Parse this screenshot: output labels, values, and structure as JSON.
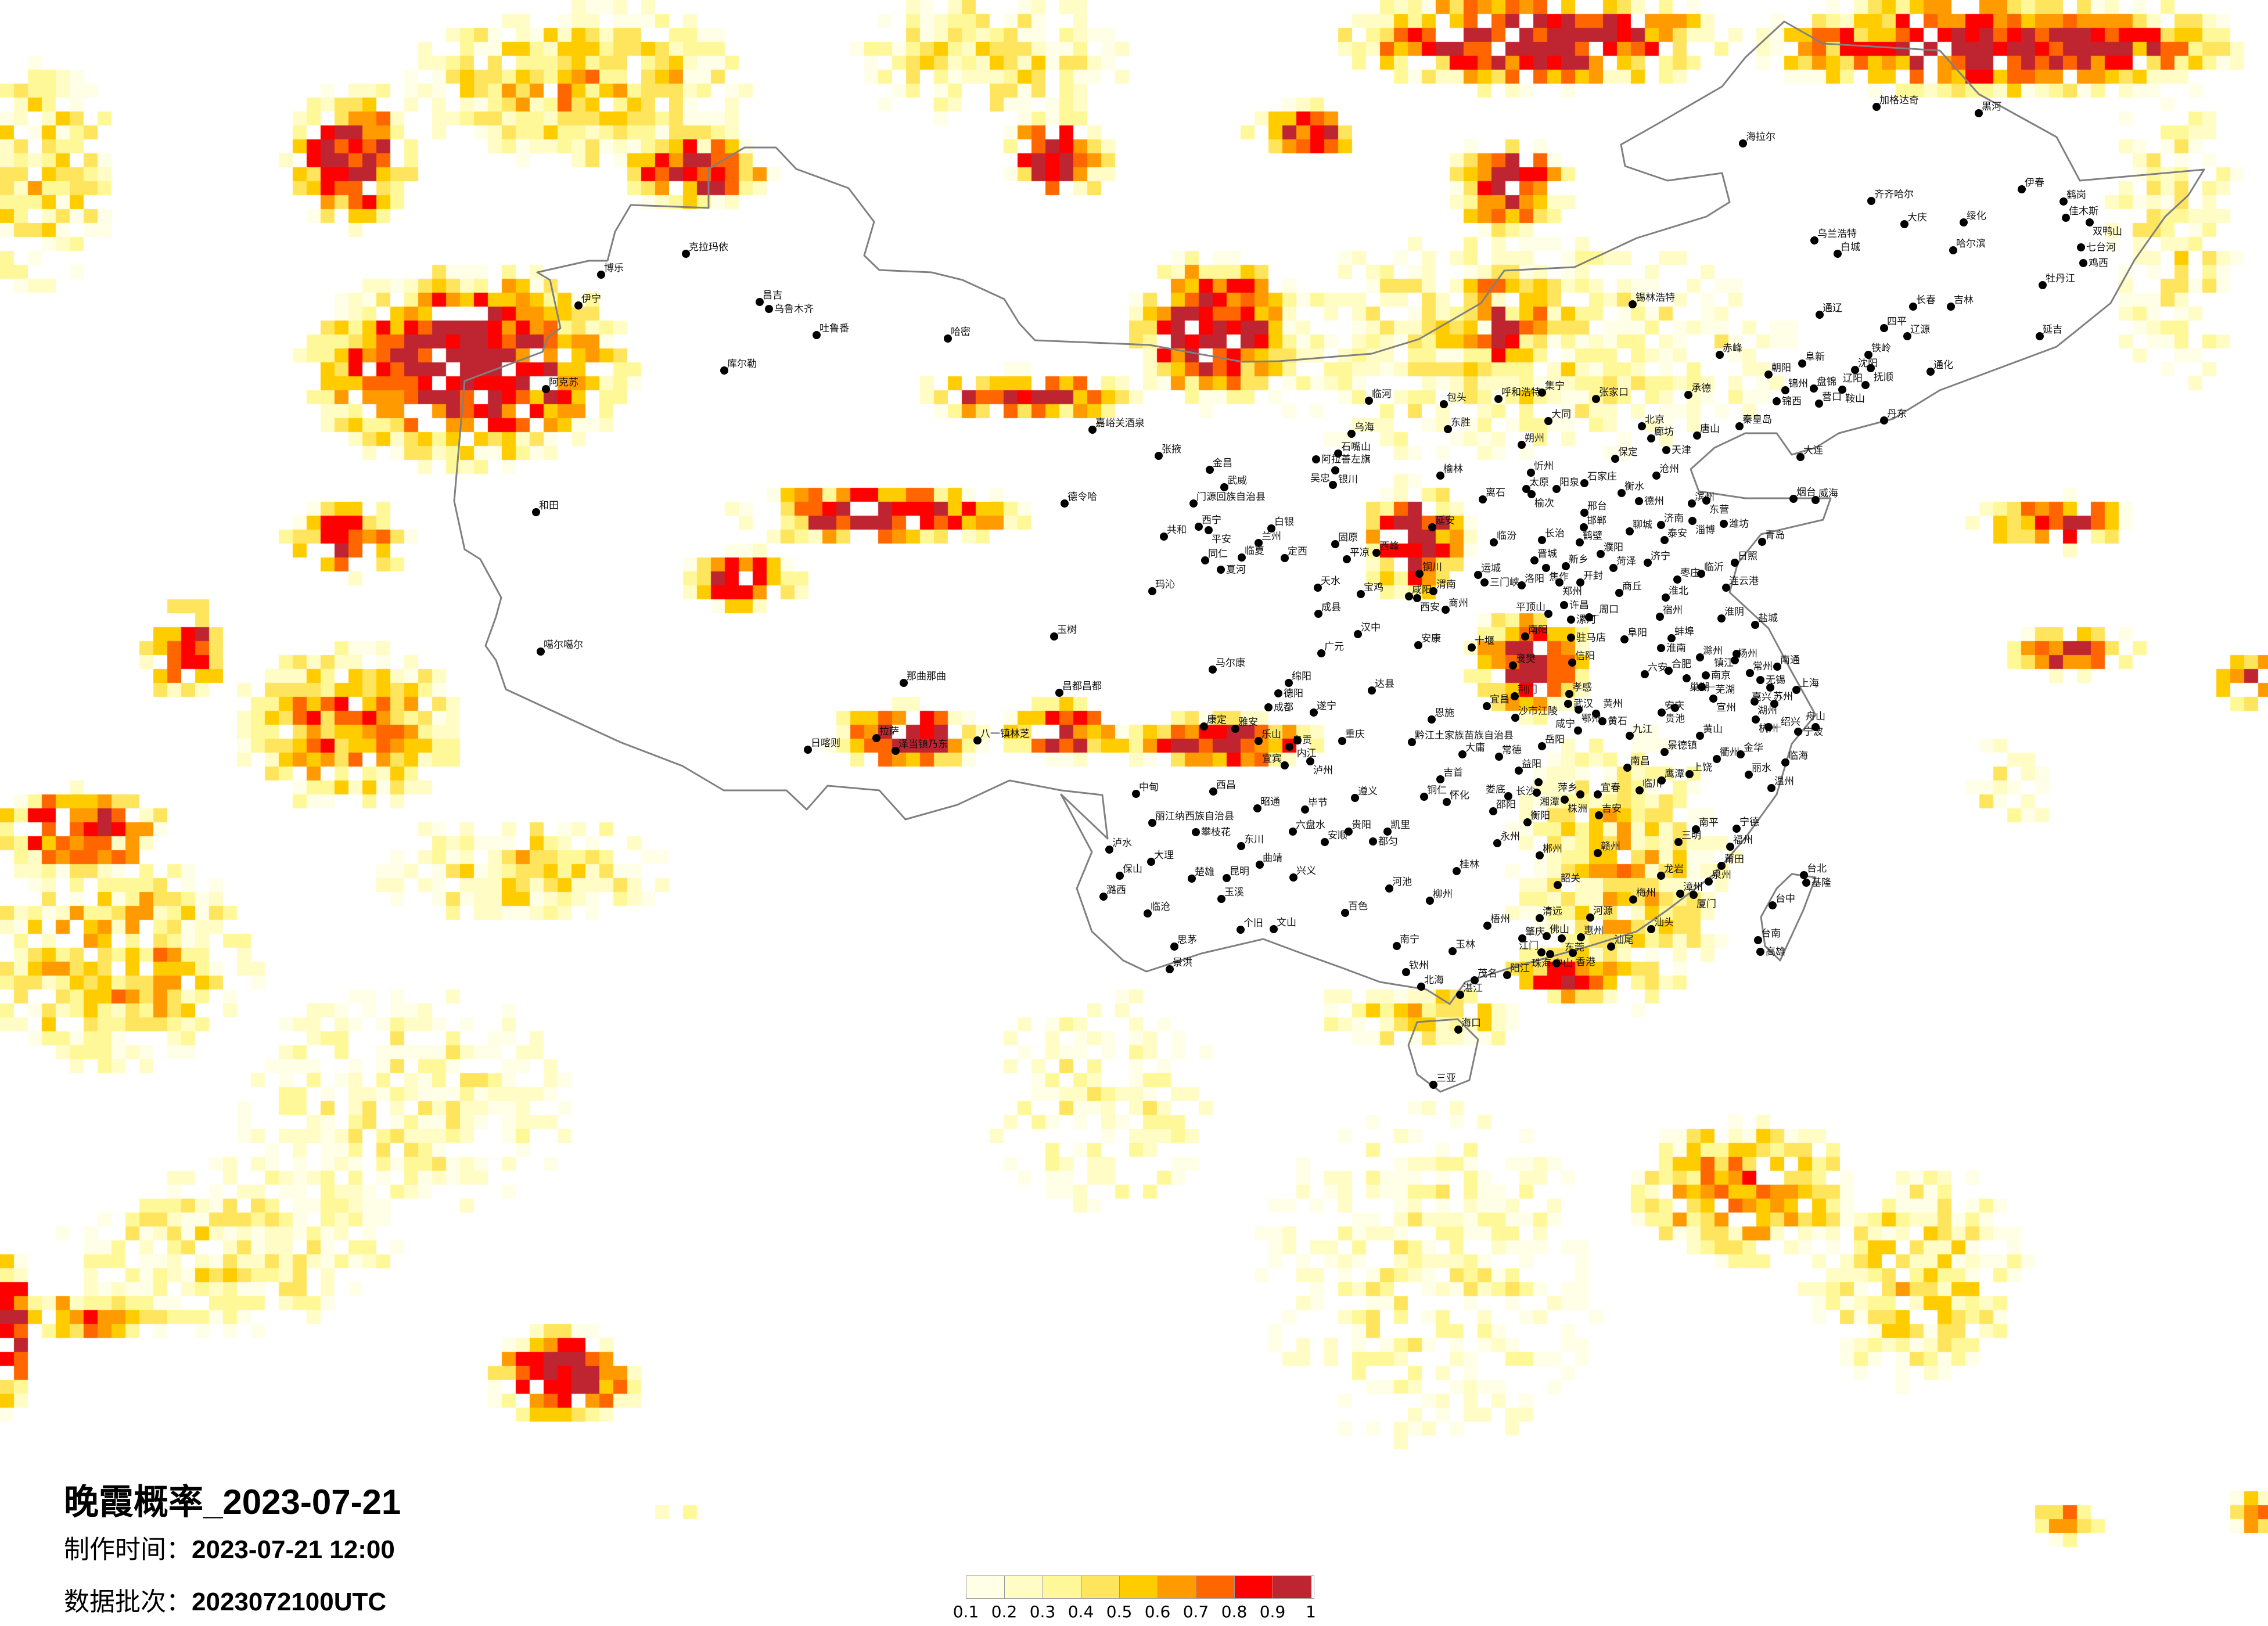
{
  "title": "晚霞概率_2023-07-21",
  "production_time_label": "制作时间：",
  "production_time": "2023-07-21 12:00",
  "batch_label": "数据批次：",
  "batch": "2023072100UTC",
  "legend": {
    "ticks": [
      "0.1",
      "0.2",
      "0.3",
      "0.4",
      "0.5",
      "0.6",
      "0.7",
      "0.8",
      "0.9",
      "1"
    ],
    "colors": [
      "#FFFEE6",
      "#FFFCC6",
      "#FFF899",
      "#FFE55E",
      "#FFCC00",
      "#FF9A00",
      "#FF6600",
      "#FF0000",
      "#BF2530"
    ]
  },
  "map": {
    "boundary_color": "#808080",
    "city_dot_color": "#000000",
    "cities": [
      "克拉玛依",
      "博乐",
      "伊宁",
      "昌吉",
      "乌鲁木齐",
      "吐鲁番",
      "哈密",
      "库尔勒",
      "阿克苏",
      "和田",
      "噶尔噶尔",
      "那曲那曲",
      "拉萨",
      "日喀则",
      "泽当镇乃东",
      "八一镇林芝",
      "昌都昌都",
      "玉树",
      "嘉峪关酒泉",
      "张掖",
      "金昌",
      "武威",
      "门源回族自治县",
      "德令哈",
      "西宁",
      "平安",
      "共和",
      "白银",
      "兰州",
      "临夏",
      "定西",
      "同仁",
      "夏河",
      "玛沁",
      "天水",
      "宝鸡",
      "成县",
      "汉中",
      "临河",
      "乌海",
      "石嘴山",
      "阿拉善左旗",
      "银川",
      "吴忠",
      "固原",
      "平凉",
      "西峰",
      "包头",
      "呼和浩特",
      "集宁",
      "东胜",
      "榆林",
      "延安",
      "铜川",
      "渭南",
      "咸阳",
      "西安",
      "商州",
      "离石",
      "临汾",
      "运城",
      "三门峡",
      "朔州",
      "大同",
      "忻州",
      "太原",
      "榆次",
      "阳泉",
      "长治",
      "晋城",
      "张家口",
      "承德",
      "北京",
      "廊坊",
      "天津",
      "唐山",
      "秦皇岛",
      "保定",
      "沧州",
      "石家庄",
      "衡水",
      "德州",
      "邢台",
      "邯郸",
      "滨州",
      "东营",
      "济南",
      "淄博",
      "潍坊",
      "聊城",
      "泰安",
      "烟台",
      "威海",
      "青岛",
      "日照",
      "济宁",
      "菏泽",
      "临沂",
      "枣庄",
      "连云港",
      "鹤壁",
      "濮阳",
      "新乡",
      "焦作",
      "郑州",
      "开封",
      "洛阳",
      "商丘",
      "许昌",
      "平顶山",
      "漯河",
      "周口",
      "驻马店",
      "南阳",
      "信阳",
      "淮北",
      "宿州",
      "淮阴",
      "盐城",
      "阜阳",
      "蚌埠",
      "淮南",
      "滁州",
      "扬州",
      "镇江",
      "南京",
      "常州",
      "南通",
      "六安",
      "合肥",
      "巢湖",
      "芜湖",
      "无锡",
      "苏州",
      "上海",
      "宣州",
      "湖州",
      "嘉兴",
      "安庆",
      "贵池",
      "杭州",
      "绍兴",
      "宁波",
      "舟山",
      "孝感",
      "武汉",
      "鄂州",
      "黄州",
      "黄石",
      "咸宁",
      "九江",
      "黄山",
      "景德镇",
      "衢州",
      "金华",
      "临海",
      "南昌",
      "鹰潭",
      "上饶",
      "丽水",
      "温州",
      "临川",
      "宜春",
      "萍乡",
      "株洲",
      "吉安",
      "南平",
      "宁德",
      "三明",
      "福州",
      "赣州",
      "莆田",
      "龙岩",
      "泉州",
      "漳州",
      "厦门",
      "梅州",
      "韶关",
      "台北",
      "基隆",
      "台中",
      "台南",
      "高雄",
      "河源",
      "清远",
      "汕头",
      "肇庆",
      "佛山",
      "东莞",
      "惠州",
      "汕尾",
      "江门",
      "中山",
      "香港",
      "珠海",
      "钦州",
      "北海",
      "茂名",
      "阳江",
      "湛江",
      "海口",
      "三亚",
      "马尔康",
      "广元",
      "绵阳",
      "德阳",
      "成都",
      "遂宁",
      "达县",
      "康定",
      "雅安",
      "乐山",
      "自贡",
      "内江",
      "宜宾",
      "泸州",
      "重庆",
      "安康",
      "十堰",
      "襄樊",
      "荆门",
      "宜昌",
      "沙市江陵",
      "恩施",
      "黔江土家族苗族自治县",
      "大庸",
      "常德",
      "岳阳",
      "益阳",
      "长沙",
      "湘潭",
      "娄底",
      "邵阳",
      "衡阳",
      "吉首",
      "铜仁",
      "怀化",
      "中甸",
      "西昌",
      "昭通",
      "毕节",
      "遵义",
      "丽江纳西族自治县",
      "攀枝花",
      "六盘水",
      "贵阳",
      "凯里",
      "都匀",
      "安顺",
      "东川",
      "泸水",
      "大理",
      "保山",
      "楚雄",
      "昆明",
      "曲靖",
      "兴义",
      "永州",
      "郴州",
      "桂林",
      "河池",
      "柳州",
      "潞西",
      "玉溪",
      "临沧",
      "百色",
      "梧州",
      "个旧",
      "文山",
      "思茅",
      "景洪",
      "南宁",
      "玉林",
      "海拉尔",
      "加格达奇",
      "黑河",
      "齐齐哈尔",
      "大庆",
      "绥化",
      "哈尔滨",
      "伊春",
      "鹤岗",
      "佳木斯",
      "双鸭山",
      "七台河",
      "鸡西",
      "牡丹江",
      "乌兰浩特",
      "白城",
      "锡林浩特",
      "长春",
      "吉林",
      "通辽",
      "四平",
      "辽源",
      "延吉",
      "赤峰",
      "铁岭",
      "阜新",
      "沈阳",
      "抚顺",
      "通化",
      "朝阳",
      "锦州",
      "盘锦",
      "辽阳",
      "鞍山",
      "锦西",
      "营口",
      "丹东",
      "大连"
    ]
  }
}
